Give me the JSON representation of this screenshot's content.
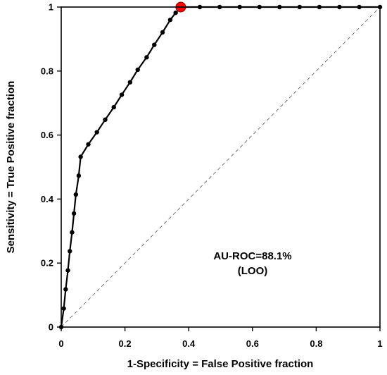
{
  "chart_data": {
    "type": "line",
    "xlabel": "1-Specificity = False Positive fraction",
    "ylabel": "Sensitivity = True Positive fraction",
    "xlim": [
      0,
      1
    ],
    "ylim": [
      0,
      1
    ],
    "x_ticks": [
      0,
      0.2,
      0.4,
      0.6,
      0.8,
      1
    ],
    "y_ticks": [
      0,
      0.2,
      0.4,
      0.6,
      0.8,
      1
    ],
    "x_tick_labels": [
      "0",
      "0.2",
      "0.4",
      "0.6",
      "0.8",
      "1"
    ],
    "y_tick_labels": [
      "0",
      "0.2",
      "0.4",
      "0.6",
      "0.8",
      "1"
    ],
    "grid": false,
    "annotation_lines": [
      "AU-ROC=88.1%",
      "(LOO)"
    ],
    "series": [
      {
        "type": "line-markers",
        "color": "#000000",
        "x": [
          0.0,
          0.008,
          0.014,
          0.021,
          0.027,
          0.034,
          0.04,
          0.046,
          0.055,
          0.061,
          0.085,
          0.112,
          0.138,
          0.165,
          0.19,
          0.216,
          0.24,
          0.268,
          0.292,
          0.318,
          0.342,
          0.359,
          0.375,
          0.435,
          0.497,
          0.56,
          0.622,
          0.685,
          0.748,
          0.81,
          0.873,
          0.935,
          1.0
        ],
        "y": [
          0.0,
          0.058,
          0.118,
          0.177,
          0.237,
          0.296,
          0.355,
          0.414,
          0.473,
          0.532,
          0.571,
          0.609,
          0.648,
          0.687,
          0.726,
          0.765,
          0.804,
          0.843,
          0.882,
          0.921,
          0.96,
          0.982,
          1.0,
          1.0,
          1.0,
          1.0,
          1.0,
          1.0,
          1.0,
          1.0,
          1.0,
          1.0,
          1.0
        ]
      },
      {
        "type": "highlight-point",
        "color": "#ff0000",
        "x": [
          0.375
        ],
        "y": [
          1.0
        ]
      },
      {
        "type": "reference-diagonal",
        "color": "#555555",
        "x": [
          0,
          1
        ],
        "y": [
          0,
          1
        ]
      }
    ]
  }
}
